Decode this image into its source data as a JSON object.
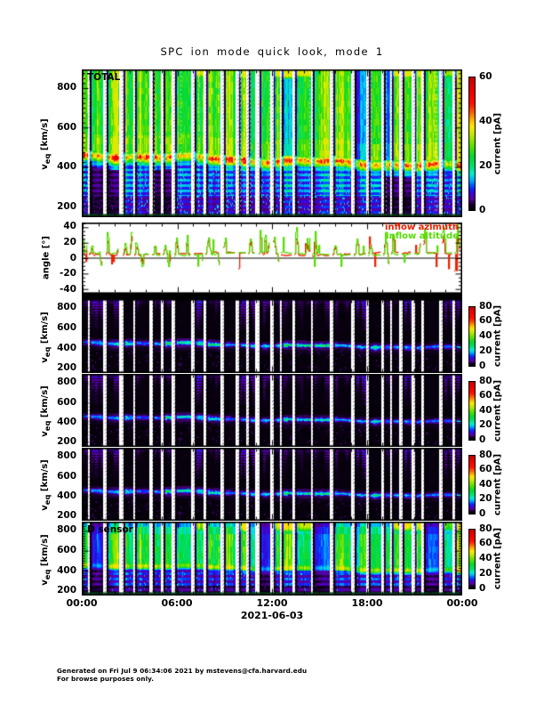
{
  "title": "SPC ion mode quick look, mode 1",
  "footer": {
    "line1": "Generated on Fri Jul  9 06:34:06 2021 by mstevens@cfa.harvard.edu",
    "line2": "For browse purposes only."
  },
  "x_axis": {
    "ticks": [
      "00:00",
      "06:00",
      "12:00",
      "18:00",
      "00:00"
    ],
    "tick_hours": [
      0,
      6,
      12,
      18,
      24
    ],
    "label": "2021-06-03"
  },
  "chart_data": [
    {
      "type": "heatmap",
      "id": "total",
      "label": "TOTAL",
      "ylabel": "v_eq [km/s]",
      "ylim": [
        150,
        890
      ],
      "yticks": [
        200,
        400,
        600,
        800
      ],
      "colorbar": {
        "label": "current [pA]",
        "max": 60,
        "ticks": [
          0,
          20,
          40,
          60
        ]
      },
      "palette": "black-purple-blue-cyan-green-yellow-orange-red",
      "content": "bright rainbow spectrogram; proton core band near 440-450 km/s (orange/red 30-60 pA), green halo up to 890 km/s, dark below 380 km/s, white vertical data-gap stripes every ~45 min"
    },
    {
      "type": "line",
      "id": "inflow-angle",
      "ylabel": "angle [°]",
      "ylim": [
        -45,
        45
      ],
      "yticks": [
        -40,
        -20,
        0,
        20,
        40
      ],
      "zero_line": true,
      "series": [
        {
          "name": "inflow azimuth",
          "color": "#ff2200",
          "typical_range_deg": [
            -20,
            28
          ]
        },
        {
          "name": "inflow altitude",
          "color": "#55dd00",
          "typical_range_deg": [
            -15,
            32
          ]
        }
      ]
    },
    {
      "type": "heatmap",
      "id": "sensor-a",
      "label": "",
      "ylabel": "v_eq [km/s]",
      "ylim": [
        155,
        885
      ],
      "yticks": [
        200,
        400,
        600,
        800
      ],
      "colorbar": {
        "label": "current [pA]",
        "max": 80,
        "ticks": [
          0,
          20,
          40,
          60,
          80
        ]
      },
      "content": "mostly black; narrow blue/cyan beam near 440 km/s drifting to ~380 km/s, faint purple streaks above 700 km/s"
    },
    {
      "type": "heatmap",
      "id": "sensor-b",
      "label": "",
      "ylabel": "v_eq [km/s]",
      "ylim": [
        155,
        885
      ],
      "yticks": [
        200,
        400,
        600,
        800
      ],
      "colorbar": {
        "label": "current [pA]",
        "max": 80,
        "ticks": [
          0,
          20,
          40,
          60,
          80
        ]
      },
      "content": "mostly black; narrow blue/cyan beam near 440 km/s drifting to ~380 km/s, faint purple streaks above 700 km/s"
    },
    {
      "type": "heatmap",
      "id": "sensor-c",
      "label": "",
      "ylabel": "v_eq [km/s]",
      "ylim": [
        155,
        885
      ],
      "yticks": [
        200,
        400,
        600,
        800
      ],
      "colorbar": {
        "label": "current [pA]",
        "max": 80,
        "ticks": [
          0,
          20,
          40,
          60,
          80
        ]
      },
      "content": "mostly black; narrow blue/cyan beam near 440 km/s drifting to ~380 km/s, faint purple streaks above 700 km/s"
    },
    {
      "type": "heatmap",
      "id": "sensor-d",
      "label": "D sensor",
      "ylabel": "v_eq [km/s]",
      "ylim": [
        155,
        885
      ],
      "yticks": [
        200,
        400,
        600,
        800
      ],
      "colorbar": {
        "label": "current [pA]",
        "max": 80,
        "ticks": [
          0,
          20,
          40,
          60,
          80
        ]
      },
      "content": "green/cyan columns 350-870 km/s with yellow-green band near 450 km/s, blue speckle below 350, dark gaps"
    }
  ]
}
